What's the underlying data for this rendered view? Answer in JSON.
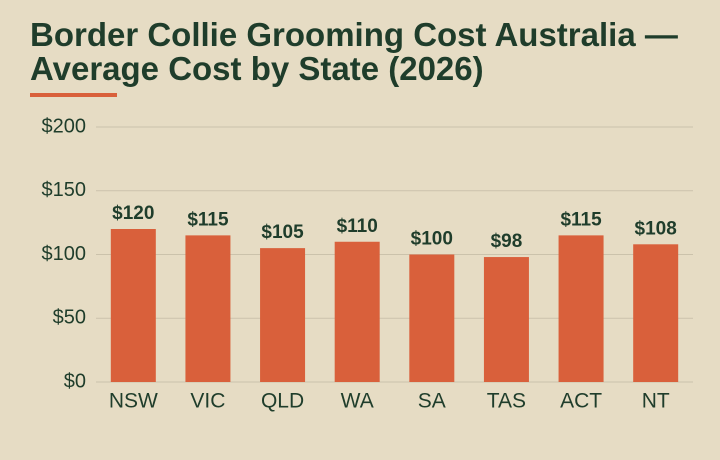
{
  "chart_data": {
    "type": "bar",
    "title": "Border Collie Grooming Cost Australia — Average Cost by State (2026)",
    "categories": [
      "NSW",
      "VIC",
      "QLD",
      "WA",
      "SA",
      "TAS",
      "ACT",
      "NT"
    ],
    "values": [
      120,
      115,
      105,
      110,
      100,
      98,
      115,
      108
    ],
    "value_labels": [
      "$120",
      "$115",
      "$105",
      "$110",
      "$100",
      "$98",
      "$115",
      "$108"
    ],
    "color": "#d9603b",
    "ylim": [
      0,
      200
    ],
    "yticks": [
      {
        "value": 0,
        "label": "$0"
      },
      {
        "value": 50,
        "label": "$50"
      },
      {
        "value": 100,
        "label": "$100"
      },
      {
        "value": 150,
        "label": "$150"
      },
      {
        "value": 200,
        "label": "$200"
      }
    ],
    "grid": true
  }
}
